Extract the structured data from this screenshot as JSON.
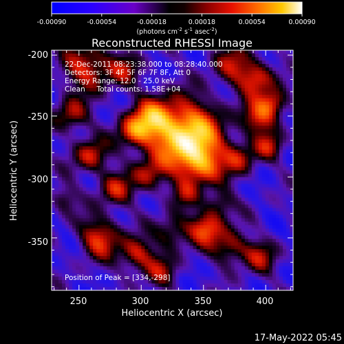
{
  "colorbar": {
    "tick_labels": [
      "-0.00090",
      "-0.00054",
      "-0.00018",
      "0.00018",
      "0.00054",
      "0.00090"
    ],
    "unit_label": {
      "prefix": "(photons cm",
      "exp1": "-2",
      "mid1": " s",
      "exp2": "-1",
      "mid2": " asec",
      "exp3": "-2",
      "suffix": ")"
    }
  },
  "plot": {
    "title": "Reconstructed RHESSI Image",
    "x_label": "Heliocentric X (arcsec)",
    "y_label": "Heliocentric Y (arcsec)",
    "x_ticks": [
      "250",
      "300",
      "350",
      "400"
    ],
    "y_ticks": [
      "-200",
      "-250",
      "-300",
      "-350"
    ],
    "x_range": [
      228,
      422
    ],
    "y_range": [
      -393,
      -196
    ]
  },
  "info": {
    "time": "22-Dec-2011 08:23:38.000 to 08:28:40.000",
    "detectors": "Detectors: 3F 4F 5F 6F 7F 8F, Att 0",
    "energy": "Energy Range: 12.0 - 25.0 keV",
    "clean": "Clean     Total counts: 1.58E+04"
  },
  "peak": {
    "label": "Position of Peak = [334,-298]",
    "x": 334,
    "y": -298
  },
  "footer": {
    "timestamp": "17-May-2022 05:45"
  }
}
